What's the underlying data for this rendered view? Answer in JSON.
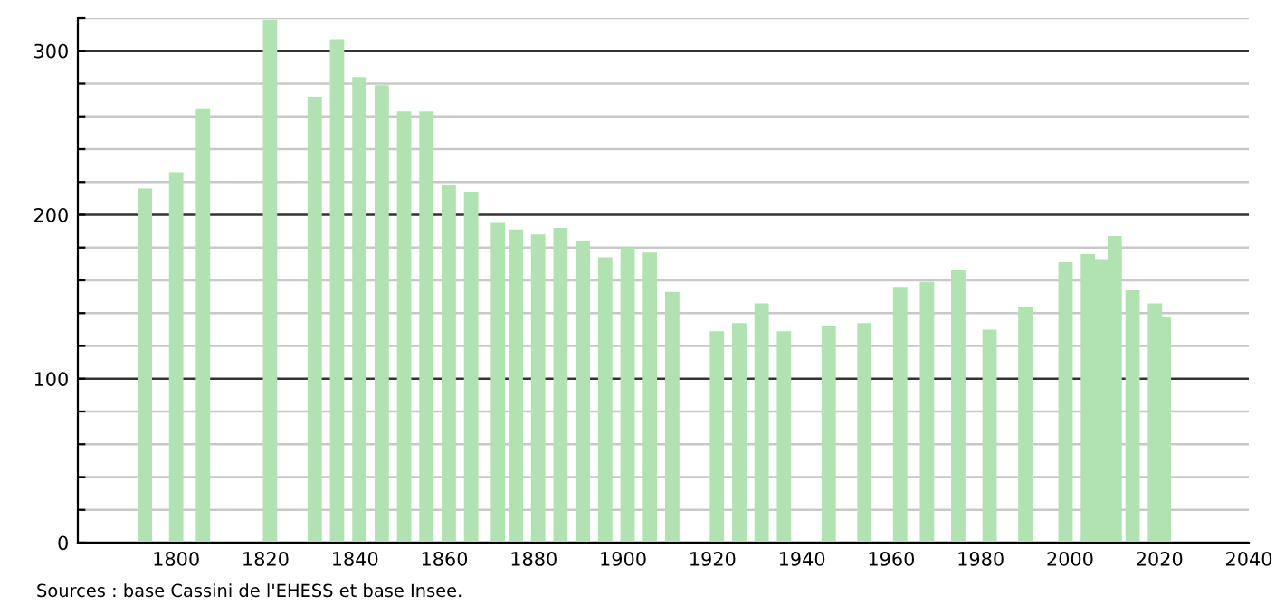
{
  "chart_data": {
    "type": "bar",
    "x": [
      1793,
      1800,
      1806,
      1821,
      1831,
      1836,
      1841,
      1846,
      1851,
      1856,
      1861,
      1866,
      1872,
      1876,
      1881,
      1886,
      1891,
      1896,
      1901,
      1906,
      1911,
      1921,
      1926,
      1931,
      1936,
      1946,
      1954,
      1962,
      1968,
      1975,
      1982,
      1990,
      1999,
      2004,
      2007,
      2010,
      2014,
      2019,
      2021
    ],
    "values": [
      216,
      226,
      265,
      319,
      272,
      307,
      284,
      279,
      263,
      263,
      218,
      214,
      195,
      191,
      188,
      192,
      184,
      174,
      180,
      177,
      153,
      129,
      134,
      146,
      129,
      132,
      134,
      156,
      159,
      166,
      130,
      144,
      171,
      176,
      173,
      187,
      154,
      146,
      138
    ],
    "color": "#b1e2b1",
    "xlim": [
      1778,
      2040
    ],
    "xticks": [
      1800,
      1820,
      1840,
      1860,
      1880,
      1900,
      1920,
      1940,
      1960,
      1980,
      2000,
      2020,
      2040
    ],
    "ylim": [
      0,
      320
    ],
    "yticks": [
      0,
      {
        "value": 20,
        "label": null
      },
      {
        "value": 40,
        "label": null
      },
      {
        "value": 60,
        "label": null
      },
      {
        "value": 80,
        "label": null
      },
      100,
      {
        "value": 120,
        "label": null
      },
      {
        "value": 140,
        "label": null
      },
      {
        "value": 160,
        "label": null
      },
      {
        "value": 180,
        "label": null
      },
      200,
      {
        "value": 220,
        "label": null
      },
      {
        "value": 240,
        "label": null
      },
      {
        "value": 260,
        "label": null
      },
      {
        "value": 280,
        "label": null
      },
      300,
      {
        "value": 320,
        "label": null
      }
    ],
    "grid": "y",
    "annotations": [
      "Sources : base Cassini de l'EHESS et base Insee."
    ]
  }
}
